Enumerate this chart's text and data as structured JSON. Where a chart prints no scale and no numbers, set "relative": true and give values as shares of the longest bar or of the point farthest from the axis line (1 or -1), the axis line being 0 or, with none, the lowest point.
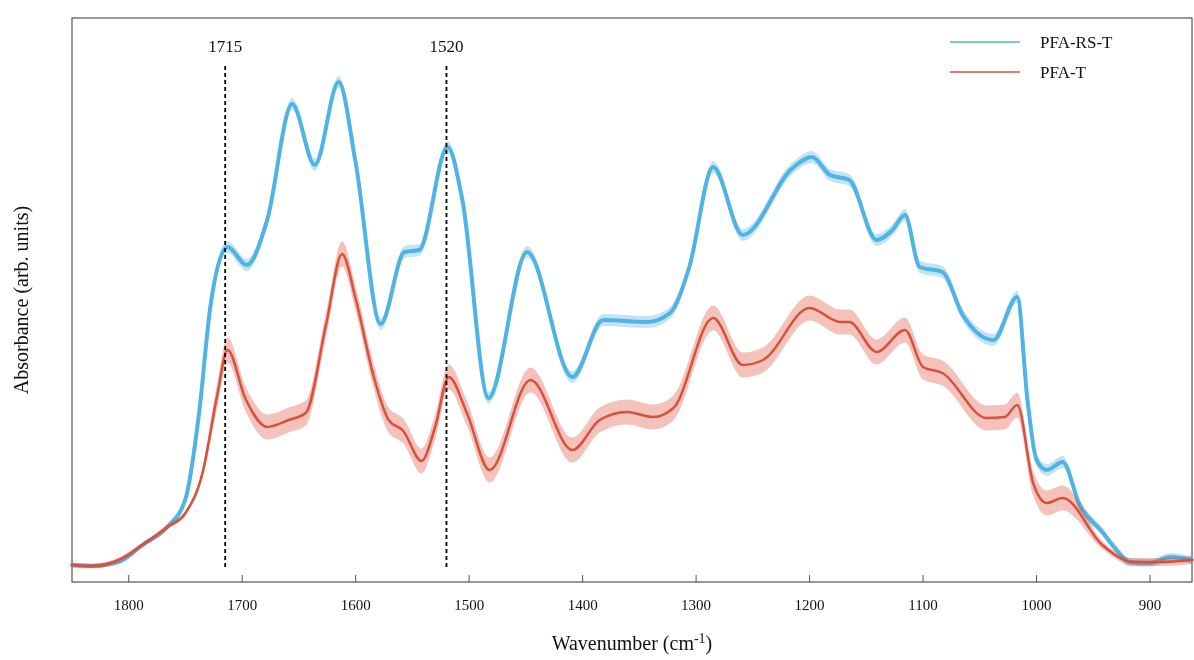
{
  "chart_data": {
    "type": "line",
    "relative": true,
    "xlabel": "Wavenumber (cm$^{-1}$)",
    "ylabel": "Absorbance (arb. units)",
    "xlim": [
      1850,
      863
    ],
    "xticks": [
      1800,
      1700,
      1600,
      1500,
      1400,
      1300,
      1200,
      1100,
      1000,
      900
    ],
    "legend": "top right",
    "grid": false,
    "line_style": "solid",
    "marker": "none",
    "ref_lines": [
      {
        "axis": "x",
        "value": 1715,
        "label": "1715",
        "color": "#000000",
        "line_style": "dashed"
      },
      {
        "axis": "x",
        "value": 1520,
        "label": "1520",
        "color": "#000000",
        "line_style": "dashed"
      }
    ],
    "series": [
      {
        "name": "PFA-RS-T",
        "color": "#4fb3e3",
        "x": [
          1850,
          1832,
          1807,
          1788,
          1766,
          1750,
          1738,
          1728,
          1713,
          1696,
          1678,
          1656,
          1636,
          1615,
          1600,
          1578,
          1557,
          1544,
          1519,
          1506,
          1483,
          1449,
          1409,
          1382,
          1343,
          1323,
          1306,
          1285,
          1259,
          1215,
          1198,
          1182,
          1165,
          1141,
          1127,
          1116,
          1103,
          1083,
          1065,
          1038,
          1017,
          1008,
          1000,
          991,
          977,
          962,
          942,
          931,
          918,
          900,
          882,
          863
        ],
        "values": [
          0.034,
          0.032,
          0.042,
          0.074,
          0.11,
          0.166,
          0.338,
          0.552,
          0.67,
          0.634,
          0.724,
          0.956,
          0.834,
          1.0,
          0.838,
          0.516,
          0.66,
          0.664,
          0.87,
          0.764,
          0.368,
          0.66,
          0.41,
          0.524,
          0.52,
          0.538,
          0.63,
          0.83,
          0.694,
          0.828,
          0.85,
          0.814,
          0.804,
          0.684,
          0.704,
          0.734,
          0.63,
          0.62,
          0.534,
          0.484,
          0.57,
          0.364,
          0.244,
          0.224,
          0.24,
          0.154,
          0.1,
          0.068,
          0.04,
          0.038,
          0.05,
          0.044
        ],
        "lower": [
          0.03,
          0.028,
          0.038,
          0.07,
          0.106,
          0.162,
          0.326,
          0.54,
          0.658,
          0.622,
          0.712,
          0.944,
          0.822,
          0.988,
          0.826,
          0.504,
          0.648,
          0.652,
          0.858,
          0.752,
          0.356,
          0.648,
          0.398,
          0.512,
          0.508,
          0.526,
          0.618,
          0.818,
          0.682,
          0.816,
          0.838,
          0.802,
          0.792,
          0.672,
          0.692,
          0.722,
          0.618,
          0.608,
          0.522,
          0.472,
          0.558,
          0.352,
          0.232,
          0.212,
          0.228,
          0.142,
          0.092,
          0.06,
          0.032,
          0.03,
          0.042,
          0.036
        ],
        "upper": [
          0.038,
          0.036,
          0.046,
          0.078,
          0.114,
          0.17,
          0.35,
          0.564,
          0.682,
          0.646,
          0.736,
          0.968,
          0.846,
          1.012,
          0.85,
          0.528,
          0.672,
          0.676,
          0.882,
          0.776,
          0.38,
          0.672,
          0.422,
          0.536,
          0.532,
          0.55,
          0.642,
          0.842,
          0.706,
          0.84,
          0.862,
          0.826,
          0.816,
          0.696,
          0.716,
          0.746,
          0.642,
          0.632,
          0.546,
          0.496,
          0.582,
          0.376,
          0.256,
          0.236,
          0.252,
          0.166,
          0.108,
          0.076,
          0.048,
          0.046,
          0.058,
          0.052
        ]
      },
      {
        "name": "PFA-T",
        "color": "#d9503c",
        "x": [
          1850,
          1832,
          1807,
          1788,
          1766,
          1750,
          1735,
          1722,
          1713,
          1697,
          1678,
          1659,
          1644,
          1626,
          1612,
          1600,
          1584,
          1571,
          1558,
          1542,
          1530,
          1518,
          1502,
          1482,
          1446,
          1409,
          1385,
          1361,
          1338,
          1320,
          1285,
          1259,
          1241,
          1200,
          1173,
          1165,
          1141,
          1116,
          1100,
          1083,
          1044,
          1028,
          1017,
          1003,
          991,
          977,
          942,
          915,
          891,
          863
        ],
        "values": [
          0.034,
          0.032,
          0.046,
          0.074,
          0.11,
          0.138,
          0.218,
          0.374,
          0.464,
          0.366,
          0.31,
          0.324,
          0.338,
          0.516,
          0.656,
          0.566,
          0.41,
          0.324,
          0.302,
          0.242,
          0.31,
          0.41,
          0.338,
          0.224,
          0.404,
          0.264,
          0.324,
          0.34,
          0.33,
          0.348,
          0.528,
          0.434,
          0.444,
          0.548,
          0.52,
          0.52,
          0.46,
          0.504,
          0.43,
          0.418,
          0.328,
          0.33,
          0.354,
          0.198,
          0.158,
          0.168,
          0.074,
          0.04,
          0.04,
          0.044
        ],
        "lower": [
          0.029,
          0.027,
          0.041,
          0.069,
          0.105,
          0.133,
          0.208,
          0.349,
          0.439,
          0.341,
          0.285,
          0.299,
          0.313,
          0.491,
          0.631,
          0.541,
          0.385,
          0.299,
          0.277,
          0.217,
          0.285,
          0.385,
          0.313,
          0.199,
          0.379,
          0.239,
          0.299,
          0.315,
          0.305,
          0.323,
          0.503,
          0.409,
          0.419,
          0.523,
          0.495,
          0.495,
          0.435,
          0.479,
          0.405,
          0.393,
          0.303,
          0.305,
          0.329,
          0.173,
          0.133,
          0.143,
          0.066,
          0.032,
          0.032,
          0.036
        ],
        "upper": [
          0.039,
          0.037,
          0.051,
          0.079,
          0.115,
          0.143,
          0.228,
          0.399,
          0.489,
          0.391,
          0.335,
          0.349,
          0.363,
          0.541,
          0.681,
          0.591,
          0.435,
          0.349,
          0.327,
          0.267,
          0.335,
          0.435,
          0.363,
          0.249,
          0.429,
          0.289,
          0.349,
          0.365,
          0.355,
          0.373,
          0.553,
          0.459,
          0.469,
          0.573,
          0.545,
          0.545,
          0.485,
          0.529,
          0.455,
          0.443,
          0.353,
          0.355,
          0.379,
          0.223,
          0.183,
          0.193,
          0.082,
          0.048,
          0.048,
          0.052
        ]
      }
    ]
  }
}
